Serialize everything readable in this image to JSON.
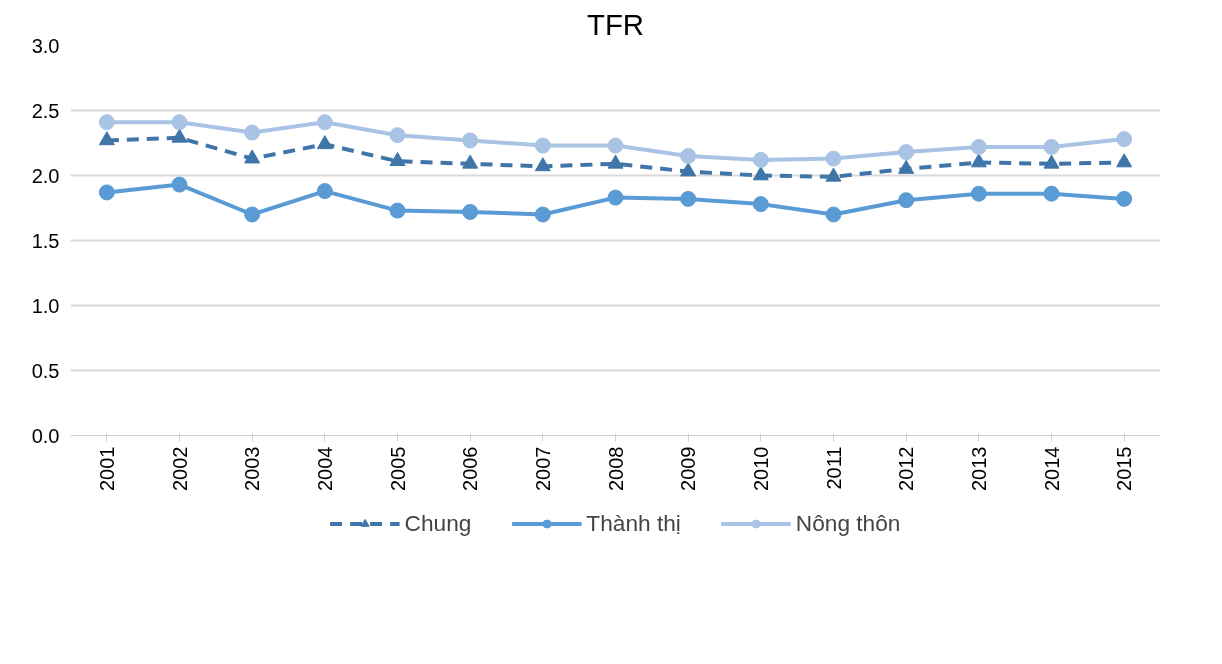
{
  "chart_data": {
    "type": "line",
    "title": "TFR",
    "categories": [
      "2001",
      "2002",
      "2003",
      "2004",
      "2005",
      "2006",
      "2007",
      "2008",
      "2009",
      "2010",
      "2011",
      "2012",
      "2013",
      "2014",
      "2015"
    ],
    "series": [
      {
        "name": "Chung",
        "color": "#3f75a8",
        "marker": "triangle",
        "line_style": "dashed",
        "values": [
          2.27,
          2.29,
          2.13,
          2.24,
          2.11,
          2.09,
          2.07,
          2.09,
          2.03,
          2.0,
          1.99,
          2.05,
          2.1,
          2.09,
          2.1
        ]
      },
      {
        "name": "Thành thị",
        "color": "#5b9bd5",
        "marker": "circle",
        "line_style": "solid",
        "values": [
          1.87,
          1.93,
          1.7,
          1.88,
          1.73,
          1.72,
          1.7,
          1.83,
          1.82,
          1.78,
          1.7,
          1.81,
          1.86,
          1.86,
          1.82
        ]
      },
      {
        "name": "Nông thôn",
        "color": "#a9c3e4",
        "marker": "circle",
        "line_style": "solid",
        "values": [
          2.41,
          2.41,
          2.33,
          2.41,
          2.31,
          2.27,
          2.23,
          2.23,
          2.15,
          2.12,
          2.13,
          2.18,
          2.22,
          2.22,
          2.28
        ]
      }
    ],
    "ylim": [
      0,
      3.0
    ],
    "yticks": [
      {
        "value": 0,
        "label": "0.0"
      },
      {
        "value": 0.5,
        "label": "0.5"
      },
      {
        "value": 1,
        "label": "1.0"
      },
      {
        "value": 1.5,
        "label": "1.5"
      },
      {
        "value": 2,
        "label": "2.0"
      },
      {
        "value": 2.5,
        "label": "2.5"
      },
      {
        "value": 3,
        "label": "3.0"
      }
    ],
    "grid": "y",
    "legend": "bottom"
  }
}
